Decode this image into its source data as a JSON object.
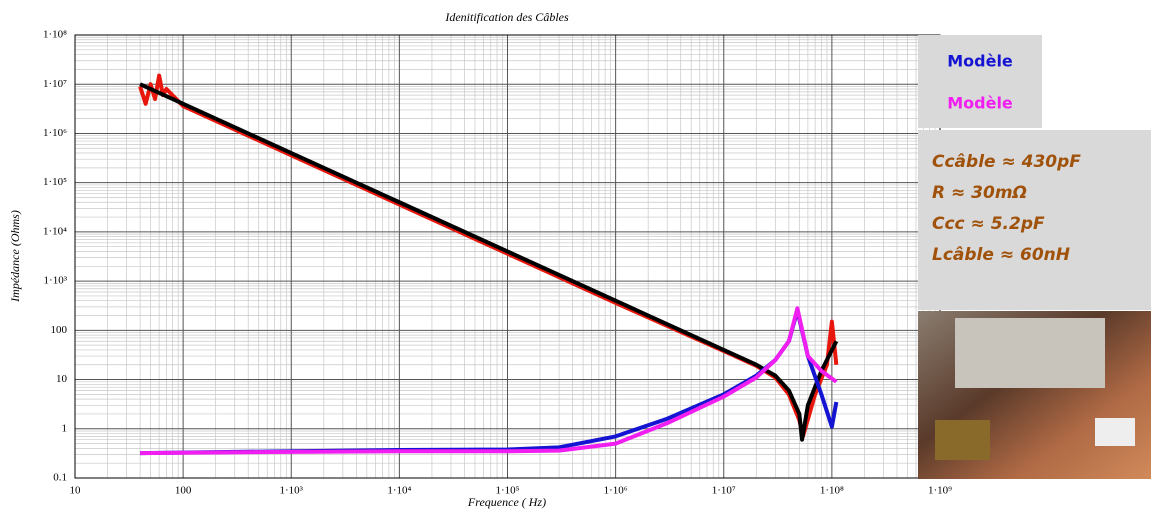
{
  "chart_data": {
    "type": "line",
    "title": "Idenitification des Câbles",
    "x_label": "Frequence ( Hz)",
    "y_label": "Impédance (Ohms)",
    "log_x": true,
    "log_y": true,
    "grid": true,
    "xlim": [
      10,
      1000000000
    ],
    "ylim": [
      0.1,
      100000000
    ],
    "xticks": [
      10,
      100,
      {
        "value": 1000,
        "label": "1·10³"
      },
      {
        "value": 10000,
        "label": "1·10⁴"
      },
      {
        "value": 100000,
        "label": "1·10⁵"
      },
      {
        "value": 1000000,
        "label": "1·10⁶"
      },
      {
        "value": 10000000,
        "label": "1·10⁷"
      },
      {
        "value": 100000000,
        "label": "1·10⁸"
      },
      {
        "value": 1000000000,
        "label": "1·10⁹"
      }
    ],
    "yticks": [
      0.1,
      1,
      10,
      100,
      {
        "value": 1000,
        "label": "1·10³"
      },
      {
        "value": 10000,
        "label": "1·10⁴"
      },
      {
        "value": 100000,
        "label": "1·10⁵"
      },
      {
        "value": 1000000,
        "label": "1·10⁶"
      },
      {
        "value": 10000000,
        "label": "1·10⁷"
      },
      {
        "value": 100000000,
        "label": "1·10⁸"
      }
    ],
    "series": [
      {
        "color": "#e8160c",
        "x": [
          40,
          45,
          50,
          55,
          60,
          65,
          70,
          100,
          1000,
          10000,
          100000,
          1000000,
          10000000,
          20000000,
          30000000,
          40000000,
          50000000,
          54000000,
          70000000,
          90000000,
          100000000,
          110000000
        ],
        "values": [
          9000000,
          4000000,
          10000000,
          5000000,
          15000000,
          6000000,
          8000000,
          3600000,
          360000,
          36000,
          3600,
          360,
          38,
          19,
          11,
          5,
          1.5,
          0.7,
          5,
          20,
          150,
          20
        ]
      },
      {
        "color": "#000000",
        "x": [
          40,
          100,
          1000,
          10000,
          100000,
          1000000,
          10000000,
          20000000,
          30000000,
          40000000,
          50000000,
          53000000,
          60000000,
          80000000,
          110000000
        ],
        "values": [
          10000000,
          4000000,
          400000,
          40000,
          4000,
          400,
          40,
          20,
          12,
          6,
          2,
          0.6,
          3,
          15,
          60
        ]
      },
      {
        "name": "Modèle",
        "color": "#1414d2",
        "x": [
          40,
          1000,
          10000,
          100000,
          300000,
          1000000,
          3000000,
          10000000,
          20000000,
          30000000,
          40000000,
          48000000,
          60000000,
          80000000,
          100000000,
          110000000
        ],
        "values": [
          0.32,
          0.35,
          0.37,
          0.38,
          0.42,
          0.7,
          1.6,
          5,
          12,
          25,
          60,
          250,
          30,
          5,
          1.1,
          3.5
        ]
      },
      {
        "name": "Modèle",
        "color": "#f01ef0",
        "x": [
          40,
          1000,
          10000,
          100000,
          300000,
          1000000,
          3000000,
          10000000,
          20000000,
          30000000,
          40000000,
          48000000,
          60000000,
          80000000,
          110000000
        ],
        "values": [
          0.32,
          0.34,
          0.35,
          0.35,
          0.36,
          0.5,
          1.3,
          4.5,
          11,
          25,
          60,
          280,
          30,
          15,
          9
        ]
      }
    ],
    "annotations": [
      "Ccâble ≈ 430pF",
      "R ≈ 30mΩ",
      "Ccc ≈ 5.2pF",
      "Lcâble ≈ 60nH"
    ]
  }
}
